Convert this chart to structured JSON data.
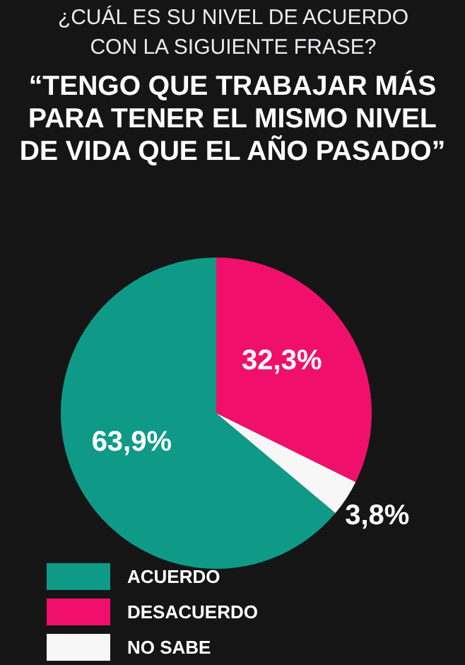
{
  "chart_data": {
    "type": "pie",
    "subtitle": "¿CUÁL ES SU NIVEL DE ACUERDO CON LA SIGUIENTE FRASE?",
    "title": "“TENGO QUE TRABAJAR MÁS PARA TENER EL MISMO NIVEL DE VIDA QUE EL AÑO PASADO”",
    "categories": [
      "ACUERDO",
      "DESACUERDO",
      "NO SABE"
    ],
    "values": [
      63.9,
      32.3,
      3.8
    ],
    "value_labels": [
      "63,9%",
      "32,3%",
      "3,8%"
    ],
    "colors": [
      "#0f9a88",
      "#f0106c",
      "#f7f7f7"
    ],
    "legend": "bottom left"
  }
}
